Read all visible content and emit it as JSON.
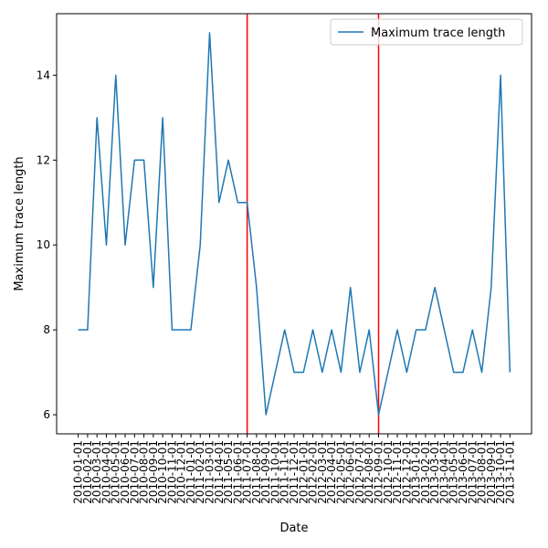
{
  "chart_data": {
    "type": "line",
    "xlabel": "Date",
    "ylabel": "Maximum trace length",
    "ylim": [
      5.55,
      15.45
    ],
    "yticks": [
      6,
      8,
      10,
      12,
      14
    ],
    "grid": false,
    "legend": {
      "position": "top-right",
      "entries": [
        "Maximum trace length"
      ]
    },
    "colors": {
      "series": "#1f77b4",
      "vlines": "#ff0000",
      "axes": "#000000"
    },
    "x": [
      "2010-01-01",
      "2010-02-01",
      "2010-03-01",
      "2010-04-01",
      "2010-05-01",
      "2010-06-01",
      "2010-07-01",
      "2010-08-01",
      "2010-09-01",
      "2010-10-01",
      "2010-11-01",
      "2010-12-01",
      "2011-01-01",
      "2011-02-01",
      "2011-03-01",
      "2011-04-01",
      "2011-05-01",
      "2011-06-01",
      "2011-07-01",
      "2011-08-01",
      "2011-09-01",
      "2011-10-01",
      "2011-11-01",
      "2011-12-01",
      "2012-01-01",
      "2012-02-01",
      "2012-03-01",
      "2012-04-01",
      "2012-05-01",
      "2012-06-01",
      "2012-07-01",
      "2012-08-01",
      "2012-09-01",
      "2012-10-01",
      "2012-11-01",
      "2012-12-01",
      "2013-01-01",
      "2013-02-01",
      "2013-03-01",
      "2013-04-01",
      "2013-05-01",
      "2013-06-01",
      "2013-07-01",
      "2013-08-01",
      "2013-09-01",
      "2013-10-01",
      "2013-11-01"
    ],
    "series": [
      {
        "name": "Maximum trace length",
        "values": [
          8,
          8,
          13,
          10,
          14,
          10,
          12,
          12,
          9,
          13,
          8,
          8,
          8,
          10,
          15,
          11,
          12,
          11,
          11,
          9,
          6,
          7,
          8,
          7,
          7,
          8,
          7,
          8,
          7,
          9,
          7,
          8,
          6,
          7,
          8,
          7,
          8,
          8,
          9,
          8,
          7,
          7,
          8,
          7,
          9,
          14,
          7
        ]
      }
    ],
    "vlines": [
      "2011-07-01",
      "2012-09-01"
    ]
  }
}
